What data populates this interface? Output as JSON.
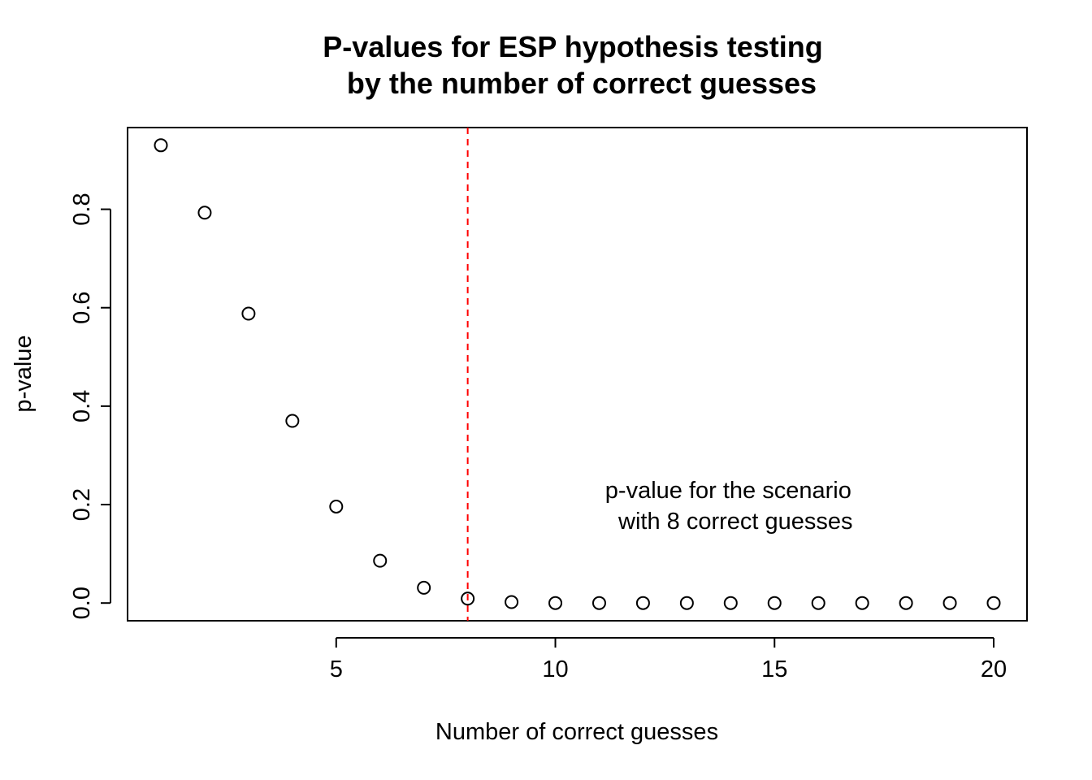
{
  "chart_data": {
    "type": "scatter",
    "title_lines": [
      "P-values for ESP hypothesis testing",
      "by the number of correct guesses"
    ],
    "xlabel": "Number of correct guesses",
    "ylabel": "p-value",
    "x": [
      1,
      2,
      3,
      4,
      5,
      6,
      7,
      8,
      9,
      10,
      11,
      12,
      13,
      14,
      15,
      16,
      17,
      18,
      19,
      20
    ],
    "y": [
      0.93,
      0.793,
      0.588,
      0.37,
      0.196,
      0.086,
      0.031,
      0.009,
      0.002,
      0.0,
      0.0,
      0.0,
      0.0,
      0.0,
      0.0,
      0.0,
      0.0,
      0.0,
      0.0,
      0.0
    ],
    "xlim": [
      0.24,
      20.76
    ],
    "ylim": [
      -0.036,
      0.966
    ],
    "x_ticks": [
      5,
      10,
      15,
      20
    ],
    "x_tick_labels": [
      "5",
      "10",
      "15",
      "20"
    ],
    "y_ticks": [
      0.0,
      0.2,
      0.4,
      0.6,
      0.8
    ],
    "y_tick_labels": [
      "0.0",
      "0.2",
      "0.4",
      "0.6",
      "0.8"
    ],
    "reference_line": {
      "x": 8,
      "color": "#ff0000",
      "style": "dashed"
    },
    "annotation": {
      "lines": [
        "p-value for the scenario",
        "with 8 correct guesses"
      ],
      "x": 14,
      "y": 0.2
    },
    "point_style": "open-circle",
    "grid": false
  }
}
